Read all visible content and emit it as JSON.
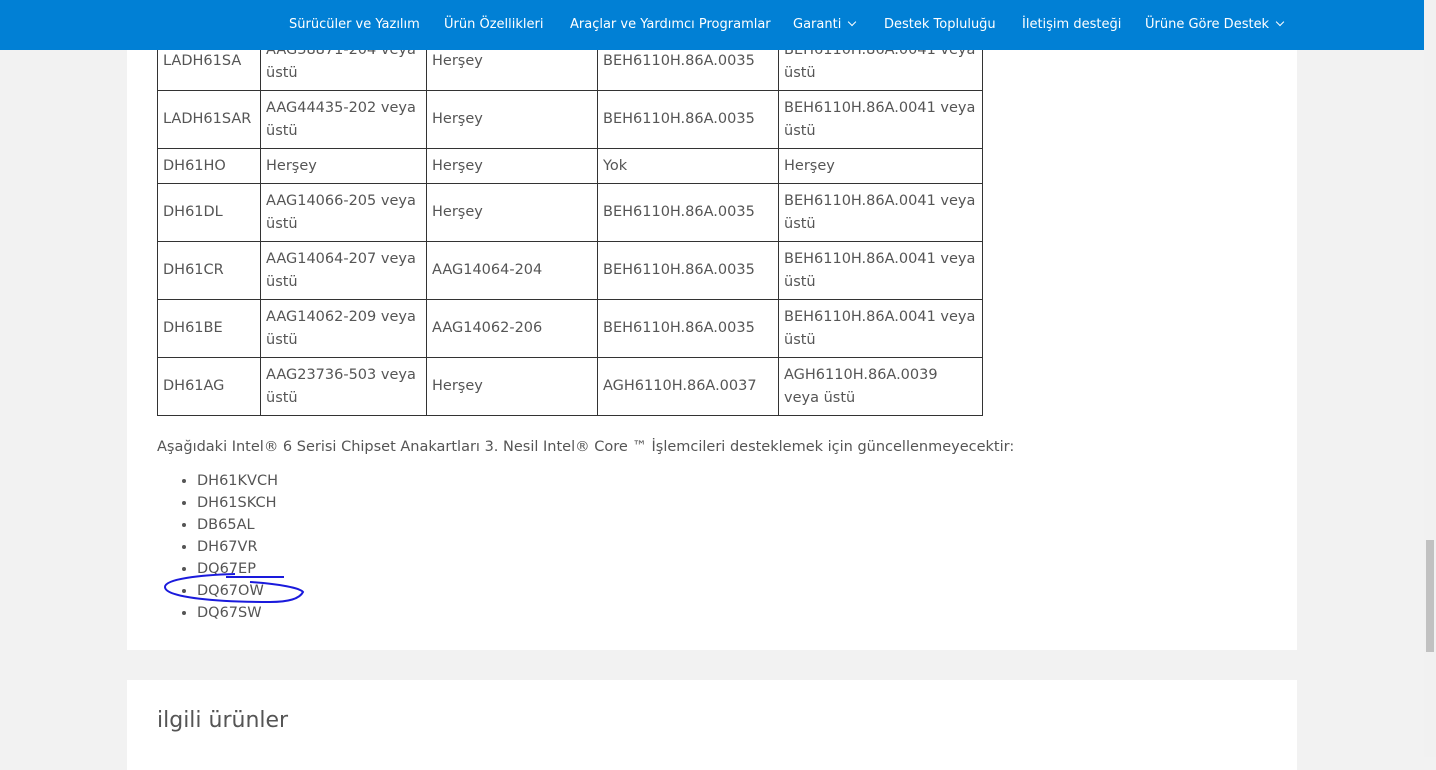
{
  "nav": {
    "items": [
      {
        "label": "Sürücüler ve Yazılım"
      },
      {
        "label": "Ürün Özellikleri"
      },
      {
        "label": "Araçlar ve Yardımcı Programlar"
      },
      {
        "label": "Garanti",
        "dropdown": true
      },
      {
        "label": "Destek Topluluğu"
      },
      {
        "label": "İletişim desteği"
      },
      {
        "label": "Ürüne Göre Destek",
        "dropdown": true
      }
    ]
  },
  "table": {
    "rows": [
      [
        "LADH61SA",
        "AAG38871-204 veya üstü",
        "Herşey",
        "BEH6110H.86A.0035",
        "BEH6110H.86A.0041 veya üstü"
      ],
      [
        "LADH61SAR",
        "AAG44435-202 veya üstü",
        "Herşey",
        "BEH6110H.86A.0035",
        "BEH6110H.86A.0041 veya üstü"
      ],
      [
        "DH61HO",
        "Herşey",
        "Herşey",
        "Yok",
        "Herşey"
      ],
      [
        "DH61DL",
        "AAG14066-205 veya üstü",
        "Herşey",
        "BEH6110H.86A.0035",
        "BEH6110H.86A.0041 veya üstü"
      ],
      [
        "DH61CR",
        "AAG14064-207 veya üstü",
        "AAG14064-204",
        "BEH6110H.86A.0035",
        "BEH6110H.86A.0041 veya üstü"
      ],
      [
        "DH61BE",
        "AAG14062-209 veya üstü",
        "AAG14062-206",
        "BEH6110H.86A.0035",
        "BEH6110H.86A.0041 veya üstü"
      ],
      [
        "DH61AG",
        "AAG23736-503 veya üstü",
        "Herşey",
        "AGH6110H.86A.0037",
        "AGH6110H.86A.0039 veya üstü"
      ]
    ]
  },
  "intro": "Aşağıdaki Intel® 6 Serisi Chipset Anakartları 3. Nesil Intel® Core ™ İşlemcileri desteklemek için güncellenmeyecektir:",
  "list": [
    "DH61KVCH",
    "DH61SKCH",
    "DB65AL",
    "DH67VR",
    "DQ67EP",
    "DQ67OW",
    "DQ67SW"
  ],
  "related_title": "ilgili ürünler",
  "annotation_color": "#1a1adc"
}
